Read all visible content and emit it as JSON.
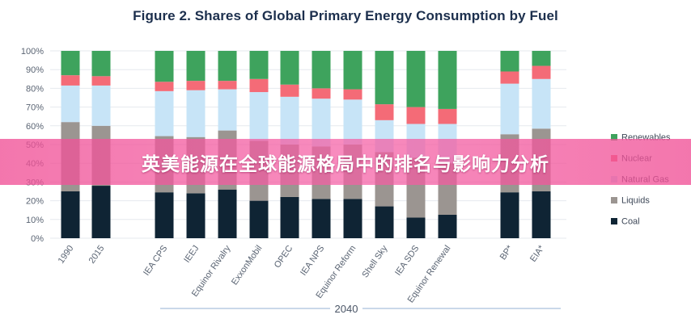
{
  "chart_data": {
    "type": "bar",
    "stacked": true,
    "title": "Figure 2. Shares of Global Primary Energy Consumption by Fuel",
    "xlabel": "",
    "ylabel": "",
    "ylim": [
      0,
      100
    ],
    "yticks": [
      "0%",
      "10%",
      "20%",
      "30%",
      "40%",
      "50%",
      "60%",
      "70%",
      "80%",
      "90%",
      "100%"
    ],
    "grid": true,
    "legend_position": "right",
    "categories": [
      "1990",
      "2015",
      "IEA CPS",
      "IEEJ",
      "Equinor Rivalry",
      "ExxonMobil",
      "OPEC",
      "IEA NPS",
      "Equinor Reform",
      "Shell Sky",
      "IEA SDS",
      "Equinor Renewal",
      "BP*",
      "EIA*"
    ],
    "group_label": "2040",
    "series": [
      {
        "name": "Coal",
        "color": "#0f2434",
        "values": [
          25,
          28,
          24.5,
          24,
          26,
          20,
          22,
          21,
          21,
          17,
          11,
          12.5,
          24.5,
          25
        ]
      },
      {
        "name": "Liquids",
        "color": "#9b9591",
        "values": [
          37,
          32,
          30,
          30,
          31.5,
          32,
          28,
          28,
          29,
          29,
          32,
          27.5,
          31,
          33.5
        ]
      },
      {
        "name": "Natural Gas",
        "color": "#c7e4f7",
        "values": [
          19.5,
          21.5,
          24,
          25,
          22,
          26,
          25.5,
          25.5,
          24,
          17,
          18,
          21,
          27,
          26.5
        ]
      },
      {
        "name": "Nuclear",
        "color": "#f46b77",
        "values": [
          5.5,
          5,
          5,
          5,
          4.5,
          7,
          6.5,
          5.5,
          5.5,
          8.5,
          9,
          8,
          6.5,
          7
        ]
      },
      {
        "name": "Renewables",
        "color": "#3ea35d",
        "values": [
          13,
          13.5,
          16.5,
          16,
          16,
          15,
          18,
          20,
          20.5,
          28.5,
          30,
          31,
          11,
          8
        ]
      }
    ]
  },
  "banner": {
    "text": "英美能源在全球能源格局中的排名与影响力分析"
  }
}
